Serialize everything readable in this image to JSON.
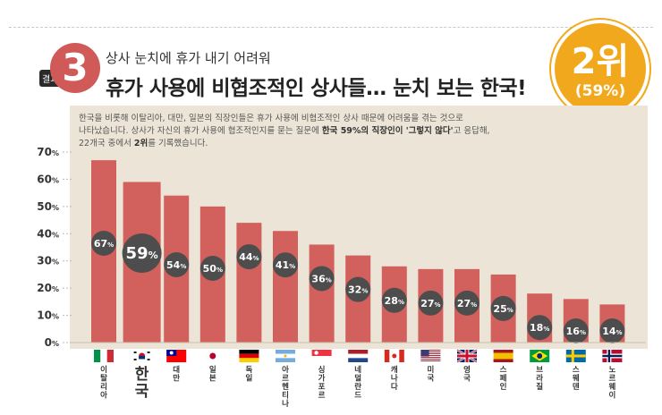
{
  "header": {
    "badge_number": "3",
    "result_tag": "결과",
    "subtitle": "상사 눈치에 휴가 내기 어려워",
    "title": "휴가 사용에 비협조적인 상사들… 눈치 보는 한국!",
    "rank_main": "2위",
    "rank_sub": "(59%)"
  },
  "description": {
    "line1": "한국을 비롯해 이탈리아, 대만, 일본의 직장인들은 휴가 사용에 비협조적인 상사 때문에 어려움을 겪는 것으로",
    "line2a": "나타났습니다. 상사가 자신의 휴가 사용에 협조적인지를 묻는 질문에 ",
    "line2b": "한국 59%의 직장인이 '그렇지 않다'",
    "line2c": "고 응답해,",
    "line3a": "22개국 중에서 ",
    "line3b": "2위",
    "line3c": "를 기록했습니다."
  },
  "colors": {
    "bar": "#d2605c",
    "bar_highlight": "#d2605c",
    "label_circle": "#4d4d4d",
    "badge": "#f2a81d",
    "accent": "#cf5a57"
  },
  "chart_data": {
    "type": "bar",
    "categories": [
      "이탈리아",
      "한국",
      "대만",
      "일본",
      "독일",
      "아르헨티나",
      "싱가포르",
      "네덜란드",
      "캐나다",
      "미국",
      "영국",
      "스페인",
      "브라질",
      "스웨덴",
      "노르웨이"
    ],
    "values": [
      67,
      59,
      54,
      50,
      44,
      41,
      36,
      32,
      28,
      27,
      27,
      25,
      18,
      16,
      14
    ],
    "value_labels": [
      "67%",
      "59%",
      "54%",
      "50%",
      "44%",
      "41%",
      "36%",
      "32%",
      "28%",
      "27%",
      "27%",
      "25%",
      "18%",
      "16%",
      "14%"
    ],
    "ylim": [
      0,
      70
    ],
    "yticks": [
      "0%",
      "10%",
      "20%",
      "30%",
      "40%",
      "50%",
      "60%",
      "70%"
    ],
    "highlight": "한국",
    "flags": [
      "italy-flag-icon",
      "korea-flag-icon",
      "taiwan-flag-icon",
      "japan-flag-icon",
      "germany-flag-icon",
      "argentina-flag-icon",
      "singapore-flag-icon",
      "netherlands-flag-icon",
      "canada-flag-icon",
      "usa-flag-icon",
      "uk-flag-icon",
      "spain-flag-icon",
      "brazil-flag-icon",
      "sweden-flag-icon",
      "norway-flag-icon"
    ],
    "grid": false
  }
}
